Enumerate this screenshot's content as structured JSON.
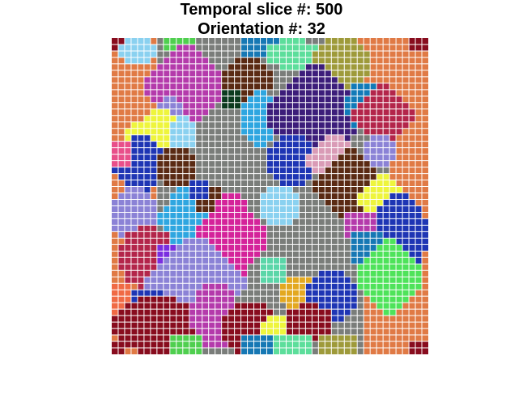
{
  "title": {
    "line1": "Temporal slice #: 500",
    "line2": "Orientation #: 32"
  },
  "grid": {
    "rows": 49,
    "cols": 49,
    "gridline_color": "#ffffff",
    "background_color": "#7a7d7a",
    "regions": [
      {
        "color": "#e07a45",
        "shape": "rect",
        "c": [
          0,
          6
        ],
        "r": [
          0,
          48
        ]
      },
      {
        "color": "#e07a45",
        "shape": "rect",
        "c": [
          43,
          48
        ],
        "r": [
          0,
          48
        ]
      },
      {
        "color": "#e07a45",
        "shape": "rect",
        "c": [
          35,
          48
        ],
        "r": [
          0,
          7
        ]
      },
      {
        "color": "#e07a45",
        "shape": "rect",
        "c": [
          39,
          48
        ],
        "r": [
          36,
          48
        ]
      },
      {
        "color": "#880c1e",
        "shape": "rect",
        "c": [
          0,
          1
        ],
        "r": [
          0,
          1
        ]
      },
      {
        "color": "#880c1e",
        "shape": "rect",
        "c": [
          46,
          48
        ],
        "r": [
          0,
          1
        ]
      },
      {
        "color": "#880c1e",
        "shape": "rect",
        "c": [
          0,
          1
        ],
        "r": [
          47,
          48
        ]
      },
      {
        "color": "#880c1e",
        "shape": "rect",
        "c": [
          46,
          48
        ],
        "r": [
          47,
          48
        ]
      },
      {
        "color": "#8ad1f0",
        "shape": "ellipse",
        "c": [
          1,
          6
        ],
        "r": [
          0,
          3
        ]
      },
      {
        "color": "#4fcf4f",
        "shape": "rect",
        "c": [
          8,
          12
        ],
        "r": [
          0,
          1
        ]
      },
      {
        "color": "#1678b4",
        "shape": "rect",
        "c": [
          20,
          25
        ],
        "r": [
          0,
          2
        ]
      },
      {
        "color": "#5cde9b",
        "shape": "ellipse",
        "c": [
          24,
          31
        ],
        "r": [
          0,
          4
        ]
      },
      {
        "color": "#9e9a3a",
        "shape": "ellipse",
        "c": [
          31,
          39
        ],
        "r": [
          0,
          7
        ]
      },
      {
        "color": "#b43aab",
        "shape": "diamond",
        "c": [
          5,
          17
        ],
        "r": [
          1,
          13
        ]
      },
      {
        "color": "#5a2a13",
        "shape": "ellipse",
        "c": [
          17,
          24
        ],
        "r": [
          3,
          9
        ]
      },
      {
        "color": "#0c3a1e",
        "shape": "rect",
        "c": [
          17,
          19
        ],
        "r": [
          8,
          10
        ]
      },
      {
        "color": "#2ea6e0",
        "shape": "ellipse",
        "c": [
          20,
          25
        ],
        "r": [
          8,
          16
        ]
      },
      {
        "color": "#3c1d7a",
        "shape": "diamond",
        "c": [
          24,
          38
        ],
        "r": [
          4,
          19
        ]
      },
      {
        "color": "#117ab8",
        "shape": "ellipse",
        "c": [
          36,
          41
        ],
        "r": [
          7,
          13
        ]
      },
      {
        "color": "#b3254a",
        "shape": "diamond",
        "c": [
          37,
          46
        ],
        "r": [
          7,
          16
        ]
      },
      {
        "color": "#8b82d6",
        "shape": "ellipse",
        "c": [
          7,
          10
        ],
        "r": [
          9,
          12
        ]
      },
      {
        "color": "#eef53c",
        "shape": "diamond",
        "c": [
          2,
          12
        ],
        "r": [
          11,
          18
        ]
      },
      {
        "color": "#8ad1f0",
        "shape": "ellipse",
        "c": [
          9,
          12
        ],
        "r": [
          12,
          17
        ]
      },
      {
        "color": "#1e35b4",
        "shape": "diamond",
        "c": [
          0,
          8
        ],
        "r": [
          15,
          23
        ]
      },
      {
        "color": "#5a2a13",
        "shape": "ellipse",
        "c": [
          7,
          12
        ],
        "r": [
          17,
          22
        ]
      },
      {
        "color": "#e84f8a",
        "shape": "rect",
        "c": [
          0,
          2
        ],
        "r": [
          16,
          19
        ]
      },
      {
        "color": "#1e35b4",
        "shape": "ellipse",
        "c": [
          24,
          31
        ],
        "r": [
          15,
          22
        ]
      },
      {
        "color": "#d99bb6",
        "shape": "diamond",
        "c": [
          30,
          38
        ],
        "r": [
          15,
          22
        ]
      },
      {
        "color": "#8b82d6",
        "shape": "ellipse",
        "c": [
          39,
          43
        ],
        "r": [
          15,
          19
        ]
      },
      {
        "color": "#5a2a13",
        "shape": "diamond",
        "c": [
          31,
          42
        ],
        "r": [
          17,
          28
        ]
      },
      {
        "color": "#eef53c",
        "shape": "diamond",
        "c": [
          38,
          45
        ],
        "r": [
          21,
          28
        ]
      },
      {
        "color": "#1e35b4",
        "shape": "ellipse",
        "c": [
          40,
          48
        ],
        "r": [
          24,
          36
        ]
      },
      {
        "color": "#b43aab",
        "shape": "rect",
        "c": [
          36,
          40
        ],
        "r": [
          27,
          30
        ]
      },
      {
        "color": "#1678b4",
        "shape": "rect",
        "c": [
          37,
          41
        ],
        "r": [
          30,
          34
        ]
      },
      {
        "color": "#8b82d6",
        "shape": "ellipse",
        "c": [
          0,
          6
        ],
        "r": [
          23,
          31
        ]
      },
      {
        "color": "#2ea6e0",
        "shape": "diamond",
        "c": [
          7,
          15
        ],
        "r": [
          23,
          32
        ]
      },
      {
        "color": "#5a2a13",
        "shape": "rect",
        "c": [
          13,
          16
        ],
        "r": [
          23,
          26
        ]
      },
      {
        "color": "#d4239a",
        "shape": "diamond",
        "c": [
          13,
          23
        ],
        "r": [
          24,
          37
        ]
      },
      {
        "color": "#8ad1f0",
        "shape": "ellipse",
        "c": [
          23,
          28
        ],
        "r": [
          23,
          28
        ]
      },
      {
        "color": "#1e35b4",
        "shape": "rect",
        "c": [
          12,
          14
        ],
        "r": [
          22,
          24
        ]
      },
      {
        "color": "#b3254a",
        "shape": "ellipse",
        "c": [
          1,
          9
        ],
        "r": [
          29,
          38
        ]
      },
      {
        "color": "#7a2ee0",
        "shape": "rect",
        "c": [
          7,
          10
        ],
        "r": [
          32,
          34
        ]
      },
      {
        "color": "#8b82d6",
        "shape": "diamond",
        "c": [
          5,
          20
        ],
        "r": [
          31,
          44
        ]
      },
      {
        "color": "#5ad6a8",
        "shape": "rect",
        "c": [
          23,
          26
        ],
        "r": [
          34,
          37
        ]
      },
      {
        "color": "#e3a820",
        "shape": "ellipse",
        "c": [
          26,
          31
        ],
        "r": [
          37,
          41
        ]
      },
      {
        "color": "#1e35b4",
        "shape": "ellipse",
        "c": [
          30,
          37
        ],
        "r": [
          36,
          43
        ]
      },
      {
        "color": "#4ee35a",
        "shape": "diamond",
        "c": [
          38,
          47
        ],
        "r": [
          31,
          42
        ]
      },
      {
        "color": "#1e35b4",
        "shape": "rect",
        "c": [
          2,
          7
        ],
        "r": [
          39,
          42
        ]
      },
      {
        "color": "#f06a45",
        "shape": "rect",
        "c": [
          0,
          2
        ],
        "r": [
          38,
          43
        ]
      },
      {
        "color": "#880c1e",
        "shape": "ellipse",
        "c": [
          0,
          13
        ],
        "r": [
          40,
          48
        ]
      },
      {
        "color": "#b43aab",
        "shape": "ellipse",
        "c": [
          12,
          19
        ],
        "r": [
          38,
          47
        ]
      },
      {
        "color": "#880c1e",
        "shape": "ellipse",
        "c": [
          17,
          25
        ],
        "r": [
          41,
          48
        ]
      },
      {
        "color": "#eef53c",
        "shape": "ellipse",
        "c": [
          23,
          29
        ],
        "r": [
          43,
          47
        ]
      },
      {
        "color": "#880c1e",
        "shape": "ellipse",
        "c": [
          27,
          33
        ],
        "r": [
          41,
          46
        ]
      },
      {
        "color": "#4fcf4f",
        "shape": "rect",
        "c": [
          9,
          13
        ],
        "r": [
          46,
          48
        ]
      },
      {
        "color": "#1678b4",
        "shape": "rect",
        "c": [
          20,
          24
        ],
        "r": [
          46,
          48
        ]
      },
      {
        "color": "#5cde9b",
        "shape": "rect",
        "c": [
          25,
          30
        ],
        "r": [
          46,
          48
        ]
      },
      {
        "color": "#9e9a3a",
        "shape": "rect",
        "c": [
          32,
          37
        ],
        "r": [
          46,
          48
        ]
      }
    ]
  }
}
